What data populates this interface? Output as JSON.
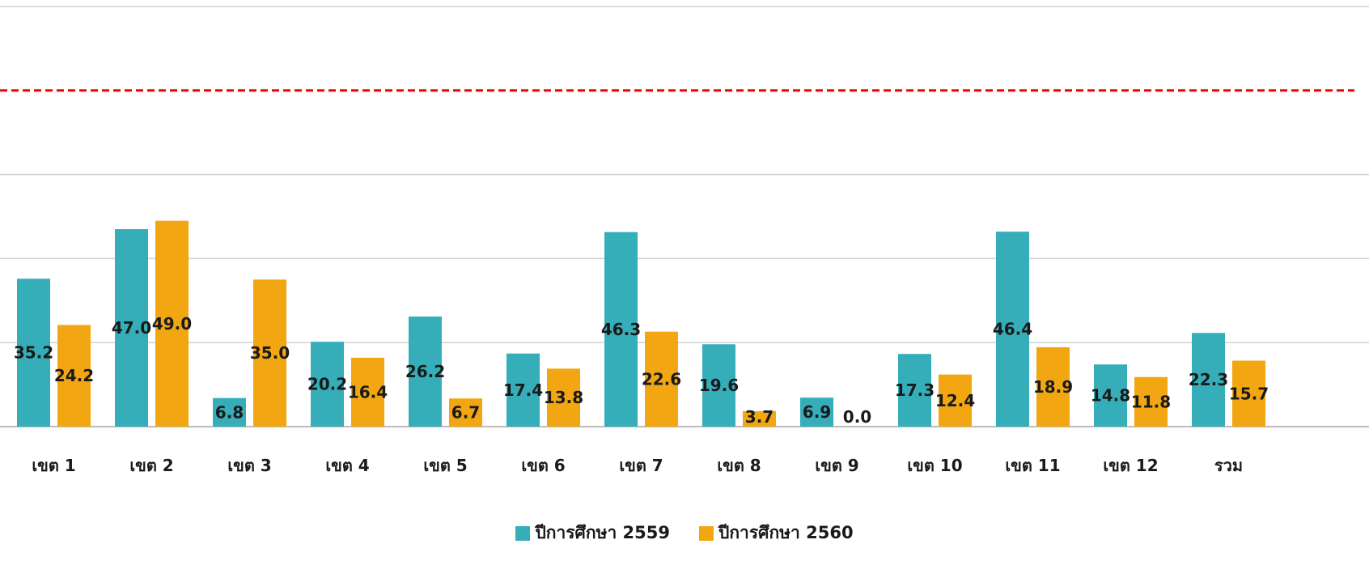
{
  "chart_data": {
    "type": "bar",
    "categories": [
      "เขต 1",
      "เขต 2",
      "เขต 3",
      "เขต 4",
      "เขต 5",
      "เขต 6",
      "เขต 7",
      "เขต 8",
      "เขต 9",
      "เขต 10",
      "เขต 11",
      "เขต 12",
      "รวม"
    ],
    "series": [
      {
        "name": "ปีการศึกษา 2559",
        "color": "#35aeb9",
        "values": [
          35.2,
          47.0,
          6.8,
          20.2,
          26.2,
          17.4,
          46.3,
          19.6,
          6.9,
          17.3,
          46.4,
          14.8,
          22.3
        ]
      },
      {
        "name": "ปีการศึกษา 2560",
        "color": "#f2a612",
        "values": [
          24.2,
          49.0,
          35.0,
          16.4,
          6.7,
          13.8,
          22.6,
          3.7,
          0.0,
          12.4,
          18.9,
          11.8,
          15.7
        ]
      }
    ],
    "ylim": [
      0,
      100
    ],
    "grid_step": 20,
    "grid": true,
    "target_line": {
      "value": 80,
      "color": "#ff0000",
      "style": "dashed"
    },
    "legend_position": "bottom-center",
    "title": "",
    "xlabel": "",
    "ylabel": ""
  }
}
